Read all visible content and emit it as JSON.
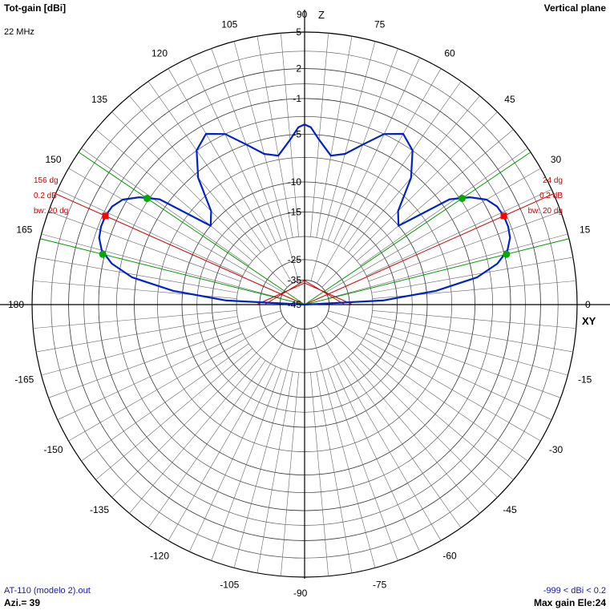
{
  "header": {
    "title": "Tot-gain [dBi]",
    "plane": "Vertical plane",
    "frequency": "22 MHz"
  },
  "footer": {
    "file": "AT-110 (modelo 2).out",
    "azimuth": "Azi.= 39",
    "range": "-999 < dBi < 0.2",
    "max_gain": "Max gain Ele:24"
  },
  "axes": {
    "z_label": "Z",
    "xy_label": "XY"
  },
  "chart_data": {
    "type": "polar",
    "title": "Tot-gain [dBi]",
    "angle_unit": "deg",
    "angle_ticks": [
      0,
      15,
      30,
      45,
      60,
      75,
      90,
      105,
      120,
      135,
      150,
      165,
      180,
      -165,
      -150,
      -135,
      -120,
      -105,
      -90,
      -75,
      -60,
      -45,
      -30,
      -15
    ],
    "radial_ticks": [
      5,
      2,
      -1,
      -5,
      -10,
      -15,
      -25,
      -35,
      -45
    ],
    "radial_range": [
      -45,
      5
    ],
    "grid": true,
    "series": [
      {
        "color": "#0022cc",
        "theta": [
          0,
          3,
          6,
          9,
          12,
          15,
          18,
          21,
          24,
          27,
          30,
          33,
          36,
          40,
          45,
          50,
          55,
          60,
          65,
          70,
          75,
          80,
          85,
          88,
          90,
          92,
          95,
          100,
          105,
          110,
          115,
          120,
          125,
          130,
          135,
          140,
          144,
          147,
          150,
          153,
          156,
          159,
          162,
          165,
          168,
          171,
          174,
          177,
          180
        ],
        "r": [
          -45,
          -18,
          -9,
          -4.5,
          -2,
          -0.6,
          0,
          0.2,
          0.2,
          0,
          -0.6,
          -2,
          -4,
          -10,
          -9,
          -5.5,
          -3,
          -2,
          -3,
          -5,
          -6.5,
          -7,
          -5.5,
          -4.2,
          -3.9,
          -4.2,
          -5.5,
          -7,
          -6.5,
          -5,
          -3,
          -2,
          -3,
          -5.5,
          -9,
          -10,
          -4,
          -2,
          -0.6,
          0,
          0.2,
          0.2,
          0,
          -0.6,
          -2,
          -4.5,
          -9,
          -18,
          -45
        ]
      }
    ],
    "markers": [
      {
        "theta": 24,
        "r": 0.2,
        "color": "#ff0000",
        "role": "max"
      },
      {
        "theta": 156,
        "r": 0.2,
        "color": "#ff0000",
        "role": "max"
      },
      {
        "theta": 14,
        "r": -0.8,
        "color": "#00aa00",
        "role": "half-power"
      },
      {
        "theta": 34,
        "r": -2.8,
        "color": "#00aa00",
        "role": "half-power"
      },
      {
        "theta": 146,
        "r": -2.8,
        "color": "#00aa00",
        "role": "half-power"
      },
      {
        "theta": 166,
        "r": -0.8,
        "color": "#00aa00",
        "role": "half-power"
      }
    ],
    "annotations": {
      "right": [
        "24 dg",
        "0.2 dB",
        "bw: 20 dg"
      ],
      "left": [
        "156 dg",
        "0.2 dB",
        "bw: 20 dg"
      ]
    },
    "reference_lines": {
      "max_color": "#cc0000",
      "bw_color": "#009900"
    }
  }
}
